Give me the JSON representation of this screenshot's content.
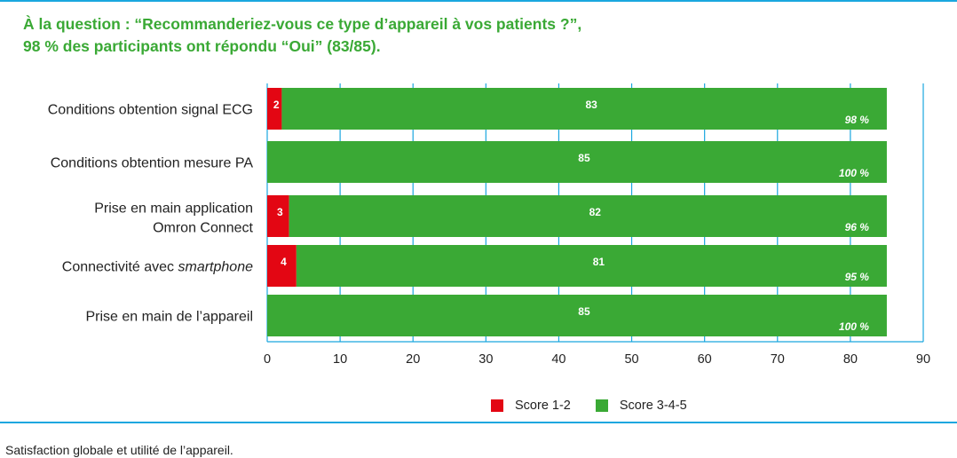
{
  "heading": {
    "line1": "À la question : “Recommanderiez-vous ce type d’appareil à vos patients ?”,",
    "line2": "98 % des participants ont répondu “Oui” (83/85)."
  },
  "caption": "Satisfaction globale et utilité de l’appareil.",
  "colors": {
    "score_low": "#e30613",
    "score_high": "#3aa935",
    "grid": "#1aa7df",
    "rule": "#1aa7df"
  },
  "chart_data": {
    "type": "bar",
    "orientation": "horizontal",
    "stacked": true,
    "categories": [
      {
        "lines": [
          "Conditions obtention signal ECG"
        ]
      },
      {
        "lines": [
          "Conditions obtention mesure PA"
        ]
      },
      {
        "lines": [
          "Prise en main application",
          "Omron Connect"
        ]
      },
      {
        "lines": [
          "Connectivité avec ",
          "smartphone"
        ],
        "italic_tail": true
      },
      {
        "lines": [
          "Prise en main de l’appareil"
        ]
      }
    ],
    "series": [
      {
        "name": "Score 1-2",
        "color": "#e30613",
        "values": [
          2,
          0,
          3,
          4,
          0
        ]
      },
      {
        "name": "Score 3-4-5",
        "color": "#3aa935",
        "values": [
          83,
          85,
          82,
          81,
          85
        ]
      }
    ],
    "percent_labels": [
      "98 %",
      "100 %",
      "96 %",
      "95 %",
      "100 %"
    ],
    "total": 85,
    "xlim": [
      0,
      90
    ],
    "xticks": [
      0,
      10,
      20,
      30,
      40,
      50,
      60,
      70,
      80,
      90
    ],
    "grid": true,
    "legend_position": "bottom-center"
  }
}
